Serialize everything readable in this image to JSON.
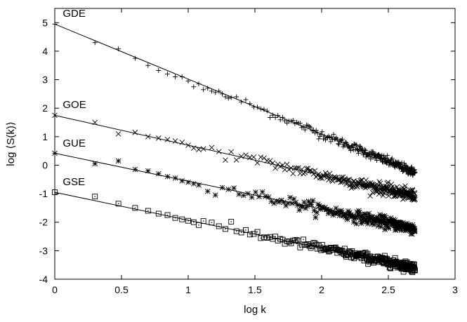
{
  "chart_data": {
    "type": "scatter",
    "xlabel": "log k",
    "ylabel": "log ⟨S(k)⟩",
    "xlim": [
      0,
      3
    ],
    "ylim": [
      -4,
      5.5
    ],
    "xticks": [
      0,
      0.5,
      1,
      1.5,
      2,
      2.5,
      3
    ],
    "xtick_labels": [
      "0",
      "0.5",
      "1",
      "1.5",
      "2",
      "2.5",
      "3"
    ],
    "yticks": [
      -4,
      -3,
      -2,
      -1,
      0,
      1,
      2,
      3,
      4,
      5
    ],
    "ytick_labels": [
      "-4",
      "-3",
      "-2",
      "-1",
      "0",
      "1",
      "2",
      "3",
      "4",
      "5"
    ],
    "grid": false,
    "legend": "none",
    "series": [
      {
        "name": "GDE",
        "marker": "plus",
        "fit": {
          "intercept": 4.95,
          "slope": -1.93
        },
        "x_range": [
          0,
          2.7
        ],
        "noise": 0.08,
        "points": [
          [
            0,
            4.95
          ],
          [
            0.301,
            4.3
          ],
          [
            0.477,
            4.08
          ],
          [
            0.602,
            3.75
          ],
          [
            0.699,
            3.5
          ],
          [
            0.778,
            3.32
          ],
          [
            0.845,
            3.2
          ],
          [
            0.903,
            3.1
          ],
          [
            0.954,
            3.1
          ],
          [
            1.0,
            2.95
          ],
          [
            1.041,
            2.75
          ],
          [
            1.079,
            2.85
          ],
          [
            1.114,
            2.65
          ],
          [
            1.146,
            2.7
          ],
          [
            1.176,
            2.6
          ],
          [
            1.204,
            2.55
          ],
          [
            1.23,
            2.6
          ],
          [
            1.255,
            2.5
          ],
          [
            1.279,
            2.4
          ],
          [
            1.301,
            2.35
          ]
        ]
      },
      {
        "name": "GOE",
        "marker": "cross",
        "fit": {
          "intercept": 1.75,
          "slope": -1.05
        },
        "x_range": [
          0,
          2.7
        ],
        "noise": 0.1,
        "points": [
          [
            0,
            1.75
          ],
          [
            0.301,
            1.5
          ],
          [
            0.477,
            1.1
          ],
          [
            0.602,
            1.15
          ],
          [
            0.699,
            1.0
          ],
          [
            0.778,
            0.95
          ],
          [
            0.845,
            0.9
          ],
          [
            0.903,
            0.85
          ],
          [
            0.954,
            0.8
          ],
          [
            1.0,
            0.7
          ],
          [
            1.041,
            0.6
          ],
          [
            1.079,
            0.55
          ]
        ]
      },
      {
        "name": "GUE",
        "marker": "star",
        "fit": {
          "intercept": 0.42,
          "slope": -0.98
        },
        "x_range": [
          0,
          2.7
        ],
        "noise": 0.1,
        "points": [
          [
            0,
            0.42
          ],
          [
            0.301,
            0.05
          ],
          [
            0.477,
            0.15
          ],
          [
            0.602,
            -0.15
          ],
          [
            0.699,
            -0.2
          ],
          [
            0.778,
            -0.3
          ],
          [
            0.845,
            -0.4
          ],
          [
            0.903,
            -0.45
          ],
          [
            0.954,
            -0.55
          ],
          [
            1.0,
            -0.6
          ],
          [
            1.041,
            -0.65
          ]
        ]
      },
      {
        "name": "GSE",
        "marker": "square",
        "fit": {
          "intercept": -0.95,
          "slope": -0.98
        },
        "x_range": [
          0,
          2.7
        ],
        "noise": 0.08,
        "points": [
          [
            0,
            -0.95
          ],
          [
            0.301,
            -1.1
          ],
          [
            0.477,
            -1.35
          ],
          [
            0.602,
            -1.5
          ],
          [
            0.699,
            -1.6
          ],
          [
            0.778,
            -1.7
          ],
          [
            0.845,
            -1.75
          ],
          [
            0.903,
            -1.85
          ],
          [
            0.954,
            -1.9
          ],
          [
            1.0,
            -1.95
          ],
          [
            1.041,
            -2.0
          ],
          [
            1.079,
            -2.1
          ]
        ]
      }
    ],
    "annotations": [
      "GDE",
      "GOE",
      "GUE",
      "GSE"
    ]
  }
}
